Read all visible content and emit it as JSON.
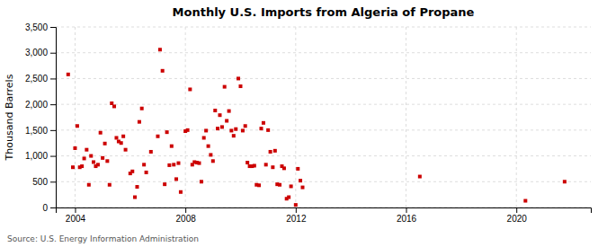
{
  "chart_data": {
    "type": "scatter",
    "title": "Monthly U.S. Imports from Algeria of Propane",
    "ylabel": "Thousand Barrels",
    "source": "Source: U.S. Energy Information Administration",
    "color": "#cc0000",
    "marker": "square",
    "grid": true,
    "xlim": [
      2003.3,
      2022.7
    ],
    "xticks": [
      2004,
      2008,
      2012,
      2016,
      2020
    ],
    "ylim": [
      0,
      3500
    ],
    "yticks": [
      0,
      500,
      {
        "value": 1000,
        "label": "1,000"
      },
      {
        "value": 1500,
        "label": "1,500"
      },
      {
        "value": 2000,
        "label": "2,000"
      },
      {
        "value": 2500,
        "label": "2,500"
      },
      {
        "value": 3000,
        "label": "3,000"
      },
      {
        "value": 3500,
        "label": "3,500"
      }
    ],
    "x": [
      2003.75,
      2003.92,
      2004.0,
      2004.08,
      2004.17,
      2004.25,
      2004.33,
      2004.42,
      2004.5,
      2004.58,
      2004.67,
      2004.75,
      2004.83,
      2004.92,
      2005.0,
      2005.08,
      2005.17,
      2005.25,
      2005.33,
      2005.42,
      2005.5,
      2005.58,
      2005.67,
      2005.75,
      2005.83,
      2006.0,
      2006.08,
      2006.17,
      2006.25,
      2006.33,
      2006.42,
      2006.5,
      2006.58,
      2006.75,
      2007.0,
      2007.08,
      2007.17,
      2007.25,
      2007.33,
      2007.42,
      2007.5,
      2007.58,
      2007.67,
      2007.75,
      2007.83,
      2008.0,
      2008.08,
      2008.17,
      2008.25,
      2008.33,
      2008.42,
      2008.5,
      2008.58,
      2008.67,
      2008.75,
      2008.83,
      2008.92,
      2009.0,
      2009.08,
      2009.17,
      2009.25,
      2009.33,
      2009.42,
      2009.5,
      2009.58,
      2009.67,
      2009.75,
      2009.83,
      2009.92,
      2010.0,
      2010.08,
      2010.17,
      2010.25,
      2010.33,
      2010.42,
      2010.5,
      2010.58,
      2010.67,
      2010.75,
      2010.83,
      2010.92,
      2011.0,
      2011.08,
      2011.17,
      2011.25,
      2011.33,
      2011.42,
      2011.5,
      2011.58,
      2011.67,
      2011.75,
      2011.83,
      2012.0,
      2012.08,
      2012.17,
      2012.25,
      2016.5,
      2020.33,
      2021.75
    ],
    "values": [
      2580,
      780,
      1150,
      1580,
      780,
      800,
      950,
      1120,
      440,
      1000,
      880,
      800,
      830,
      1450,
      960,
      1240,
      900,
      440,
      2020,
      1960,
      1350,
      1280,
      1250,
      1380,
      1120,
      660,
      700,
      200,
      400,
      1660,
      1920,
      830,
      680,
      1080,
      1380,
      3060,
      2650,
      450,
      1460,
      820,
      1190,
      830,
      550,
      860,
      300,
      1480,
      1500,
      2290,
      830,
      880,
      870,
      860,
      500,
      1350,
      1490,
      1190,
      1020,
      900,
      1880,
      1530,
      1790,
      1560,
      2340,
      1680,
      1870,
      1490,
      1390,
      1520,
      2500,
      2350,
      1490,
      1580,
      870,
      800,
      800,
      810,
      440,
      430,
      1530,
      1640,
      830,
      1500,
      1080,
      780,
      1100,
      450,
      440,
      800,
      760,
      170,
      200,
      410,
      50,
      750,
      520,
      390,
      600,
      130,
      500
    ]
  }
}
